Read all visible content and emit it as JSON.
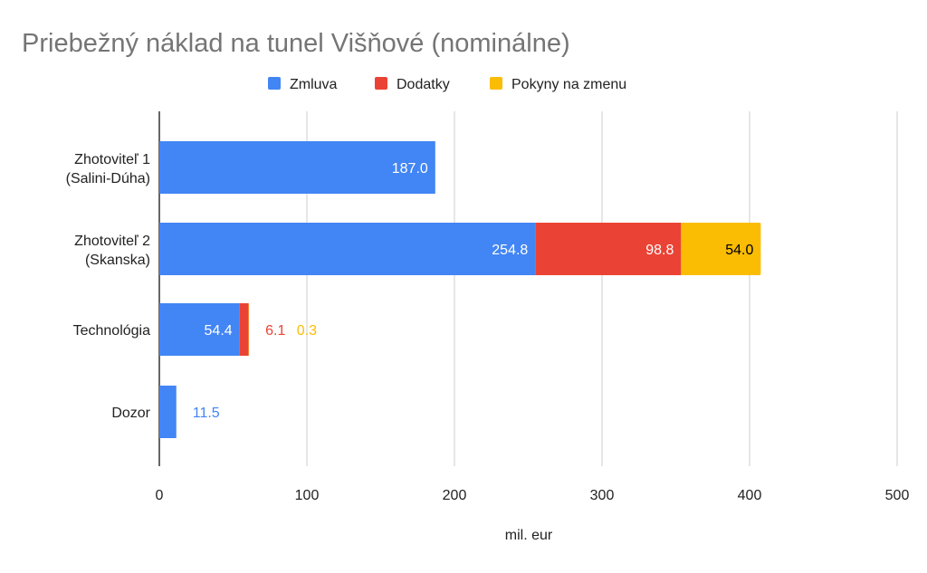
{
  "chart_data": {
    "type": "bar",
    "orientation": "horizontal",
    "stacked": true,
    "title": "Priebežný náklad na tunel Višňové (nominálne)",
    "xlabel": "mil. eur",
    "ylabel": "",
    "xlim": [
      0,
      500
    ],
    "xticks": [
      "0",
      "100",
      "200",
      "300",
      "400",
      "500"
    ],
    "grid": true,
    "legend_position": "top",
    "categories": [
      [
        "Zhotoviteľ 1",
        "(Salini-Dúha)"
      ],
      [
        "Zhotoviteľ 2",
        "(Skanska)"
      ],
      [
        "Technológia"
      ],
      [
        "Dozor"
      ]
    ],
    "series": [
      {
        "name": "Zmluva",
        "color": "#4285F4",
        "values": [
          187.0,
          254.8,
          54.4,
          11.5
        ],
        "labels": [
          "187.0",
          "254.8",
          "54.4",
          "11.5"
        ]
      },
      {
        "name": "Dodatky",
        "color": "#EA4335",
        "values": [
          0,
          98.8,
          6.1,
          0
        ],
        "labels": [
          "",
          "98.8",
          "6.1",
          ""
        ]
      },
      {
        "name": "Pokyny na zmenu",
        "color": "#FBBC04",
        "values": [
          0,
          54.0,
          0.3,
          0
        ],
        "labels": [
          "",
          "54.0",
          "0.3",
          ""
        ]
      }
    ]
  }
}
